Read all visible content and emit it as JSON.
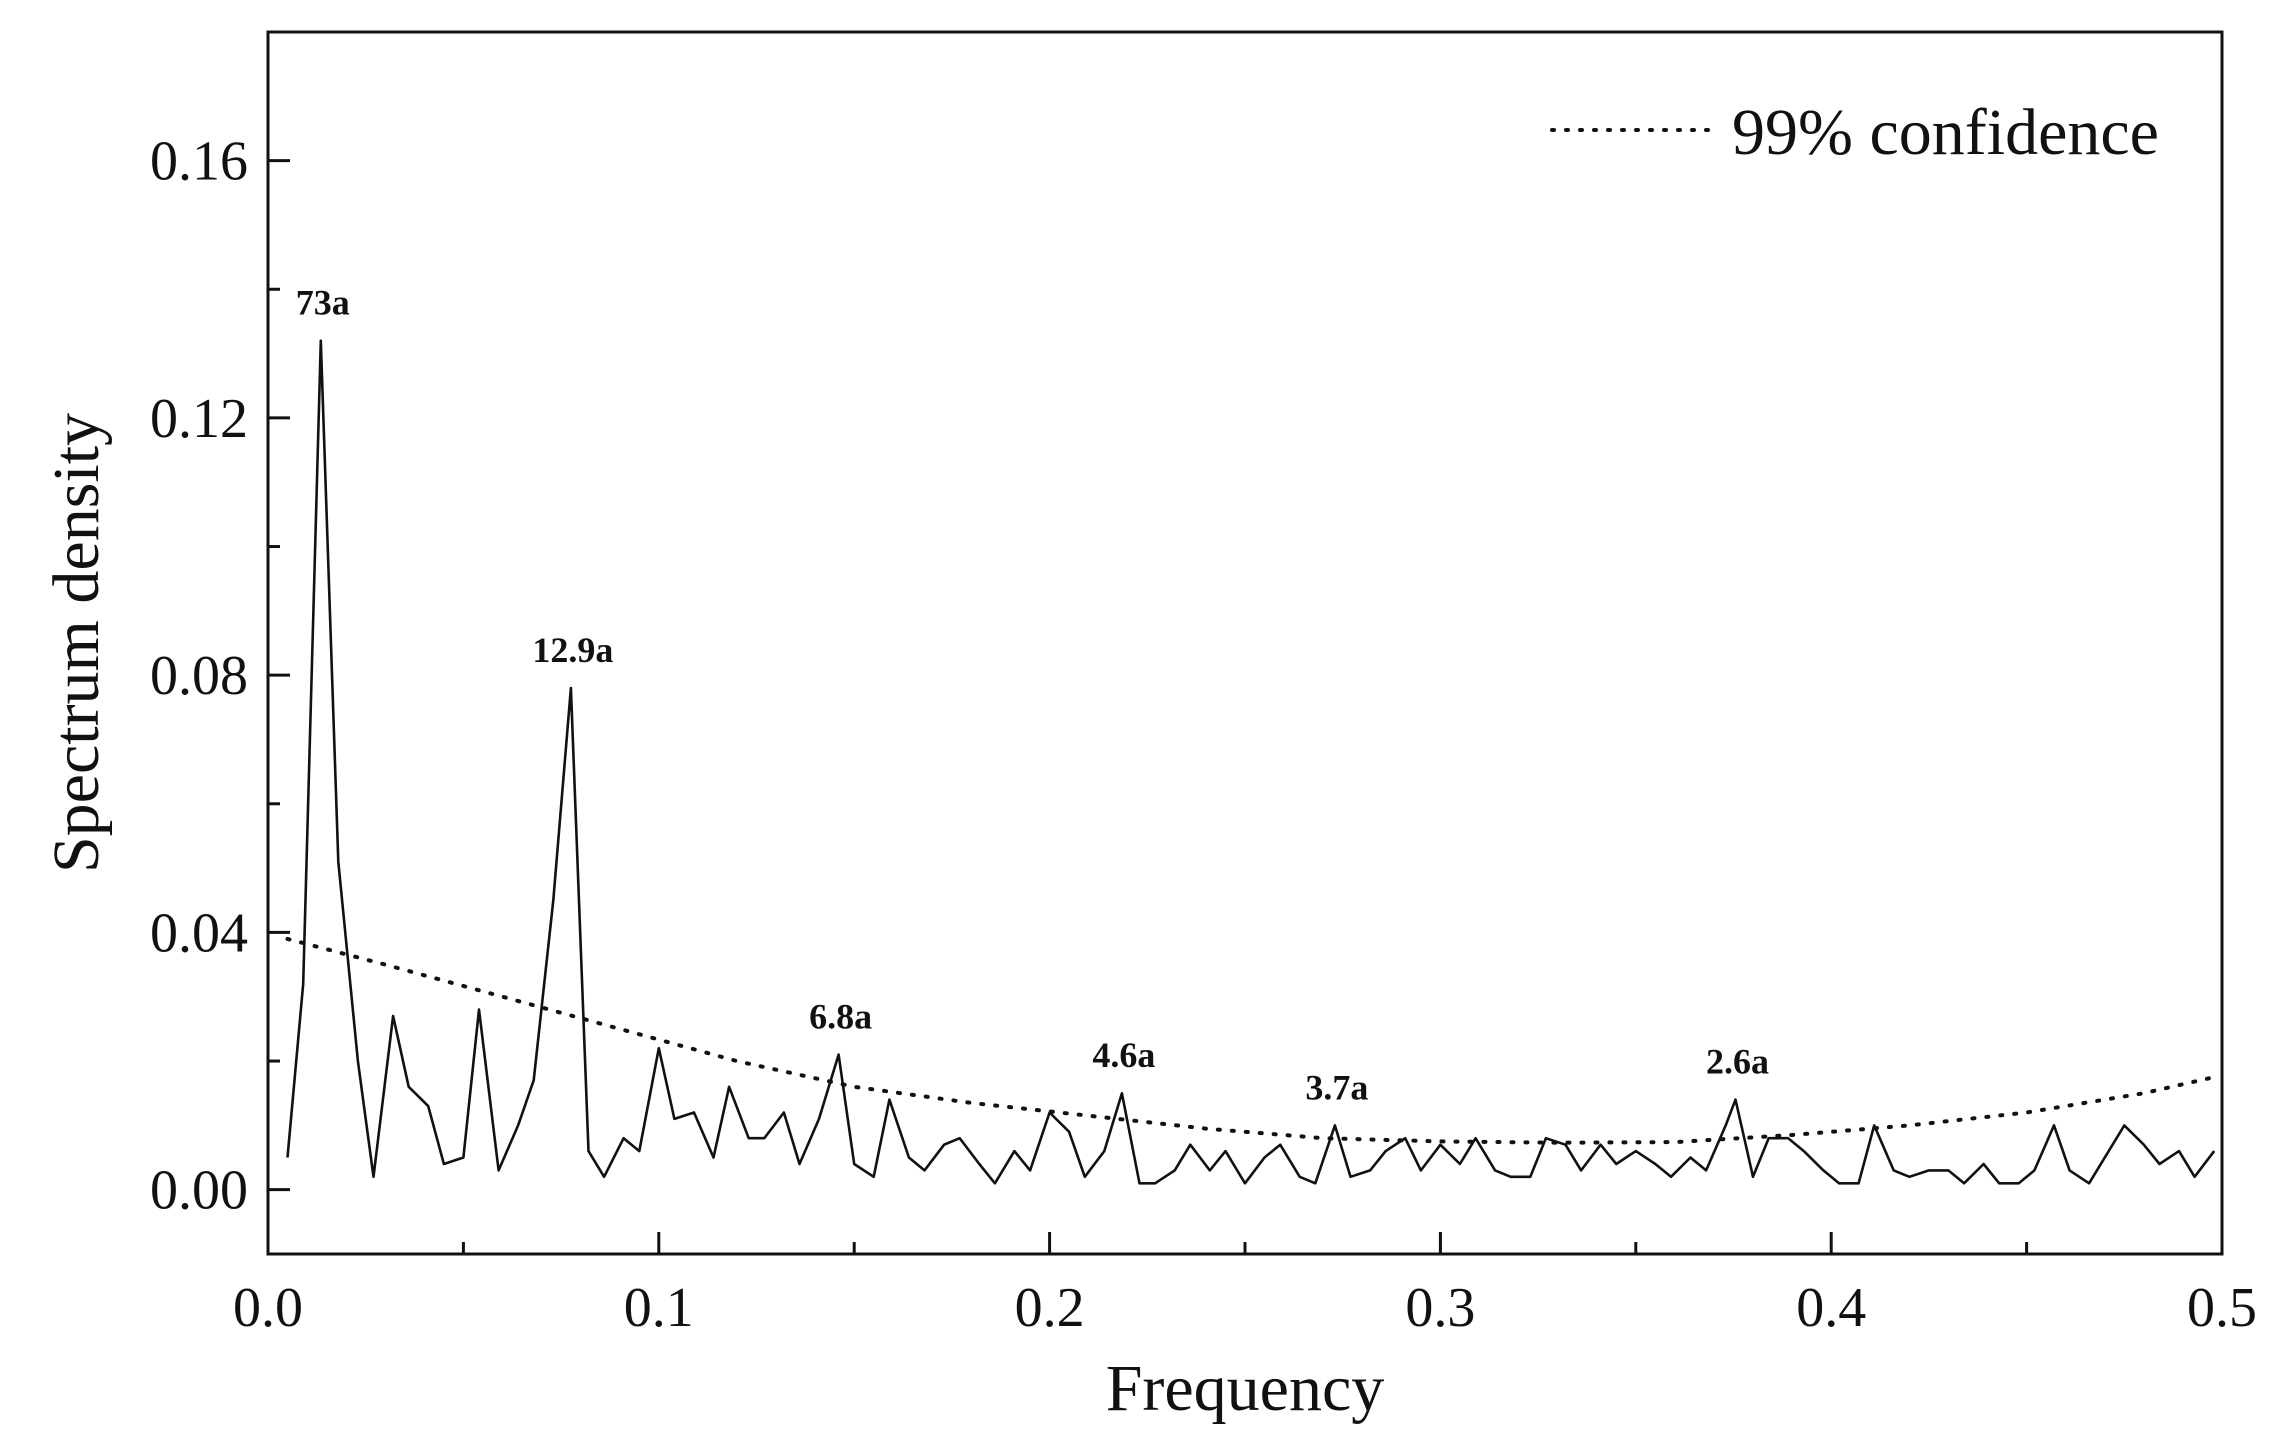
{
  "chart_data": {
    "type": "line",
    "xlabel": "Frequency",
    "ylabel": "Spectrum density",
    "xlim": [
      0.0,
      0.5
    ],
    "ylim": [
      -0.01,
      0.18
    ],
    "x_ticks": [
      "0.0",
      "0.1",
      "0.2",
      "0.3",
      "0.4",
      "0.5"
    ],
    "y_ticks": [
      "0.00",
      "0.04",
      "0.08",
      "0.12",
      "0.16"
    ],
    "grid": false,
    "legend_position": "top-right",
    "legend": [
      {
        "label": "99% confidence",
        "style": "dotted"
      }
    ],
    "series": [
      {
        "style": "solid",
        "x": [
          0.005,
          0.009,
          0.0135,
          0.018,
          0.023,
          0.027,
          0.032,
          0.036,
          0.041,
          0.045,
          0.05,
          0.054,
          0.059,
          0.064,
          0.068,
          0.073,
          0.0775,
          0.082,
          0.086,
          0.091,
          0.095,
          0.1,
          0.104,
          0.109,
          0.114,
          0.118,
          0.123,
          0.127,
          0.132,
          0.136,
          0.141,
          0.146,
          0.15,
          0.155,
          0.159,
          0.164,
          0.168,
          0.173,
          0.177,
          0.182,
          0.186,
          0.191,
          0.195,
          0.2,
          0.205,
          0.209,
          0.214,
          0.2185,
          0.223,
          0.227,
          0.232,
          0.236,
          0.241,
          0.245,
          0.25,
          0.255,
          0.259,
          0.264,
          0.268,
          0.273,
          0.277,
          0.282,
          0.286,
          0.291,
          0.295,
          0.3,
          0.305,
          0.309,
          0.314,
          0.318,
          0.323,
          0.327,
          0.332,
          0.336,
          0.341,
          0.345,
          0.35,
          0.355,
          0.359,
          0.364,
          0.368,
          0.373,
          0.3755,
          0.38,
          0.384,
          0.389,
          0.393,
          0.398,
          0.402,
          0.407,
          0.411,
          0.416,
          0.42,
          0.425,
          0.43,
          0.434,
          0.439,
          0.443,
          0.448,
          0.452,
          0.457,
          0.461,
          0.466,
          0.471,
          0.475,
          0.48,
          0.484,
          0.489,
          0.493,
          0.498
        ],
        "y": [
          0.005,
          0.032,
          0.132,
          0.051,
          0.02,
          0.002,
          0.027,
          0.016,
          0.013,
          0.004,
          0.005,
          0.028,
          0.003,
          0.01,
          0.017,
          0.045,
          0.078,
          0.006,
          0.002,
          0.008,
          0.006,
          0.022,
          0.011,
          0.012,
          0.005,
          0.016,
          0.008,
          0.008,
          0.012,
          0.004,
          0.011,
          0.021,
          0.004,
          0.002,
          0.014,
          0.005,
          0.003,
          0.007,
          0.008,
          0.004,
          0.001,
          0.006,
          0.003,
          0.012,
          0.009,
          0.002,
          0.006,
          0.015,
          0.001,
          0.001,
          0.003,
          0.007,
          0.003,
          0.006,
          0.001,
          0.005,
          0.007,
          0.002,
          0.001,
          0.01,
          0.002,
          0.003,
          0.006,
          0.008,
          0.003,
          0.007,
          0.004,
          0.008,
          0.003,
          0.002,
          0.002,
          0.008,
          0.007,
          0.003,
          0.007,
          0.004,
          0.006,
          0.004,
          0.002,
          0.005,
          0.003,
          0.01,
          0.014,
          0.002,
          0.008,
          0.008,
          0.006,
          0.003,
          0.001,
          0.001,
          0.01,
          0.003,
          0.002,
          0.003,
          0.003,
          0.001,
          0.004,
          0.001,
          0.001,
          0.003,
          0.01,
          0.003,
          0.001,
          0.006,
          0.01,
          0.007,
          0.004,
          0.006,
          0.002,
          0.006
        ]
      },
      {
        "style": "dotted",
        "x": [
          0.005,
          0.03,
          0.06,
          0.09,
          0.12,
          0.15,
          0.18,
          0.21,
          0.24,
          0.27,
          0.3,
          0.33,
          0.36,
          0.39,
          0.42,
          0.45,
          0.48,
          0.498
        ],
        "y": [
          0.039,
          0.035,
          0.03,
          0.025,
          0.02,
          0.016,
          0.0135,
          0.0115,
          0.0095,
          0.008,
          0.0075,
          0.0073,
          0.0074,
          0.0085,
          0.01,
          0.012,
          0.015,
          0.0175
        ]
      }
    ],
    "annotations": [
      {
        "text": "73a",
        "x": 0.0135,
        "y": 0.132
      },
      {
        "text": "12.9a",
        "x": 0.0775,
        "y": 0.078
      },
      {
        "text": "6.8a",
        "x": 0.146,
        "y": 0.021
      },
      {
        "text": "4.6a",
        "x": 0.2185,
        "y": 0.015
      },
      {
        "text": "3.7a",
        "x": 0.273,
        "y": 0.01
      },
      {
        "text": "2.6a",
        "x": 0.3755,
        "y": 0.014
      }
    ]
  }
}
